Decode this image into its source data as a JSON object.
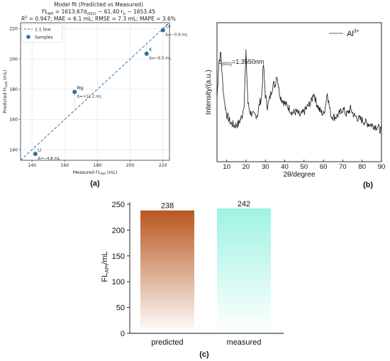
{
  "chart_data": [
    {
      "panel": "(a)",
      "type": "scatter",
      "title": "Model fit (Predicted vs Measured)",
      "equation": "FL_API = 1613.67·d(001) − 61.40·r_b − 1653.45",
      "equation_parts": {
        "lhs": "FL",
        "lhs_sub": "API",
        "mid1": " = 1613.67",
        "d": "d",
        "d_sub": "(001)",
        "mid2": " − 61.40·",
        "r": "r",
        "r_sub": "b",
        "tail": " − 1653.45"
      },
      "metrics": "R² = 0.947; MAE = 6.1 mL; RMSE = 7.3 mL; MAPE = 3.6%",
      "metrics_parts": {
        "r2": "R",
        "r2_sup": "2",
        "rest": " = 0.947; MAE = 6.1 mL; RMSE = 7.3 mL; MAPE = 3.6%"
      },
      "xlabel": {
        "text": "Measured FL",
        "sub": "API",
        "unit": " (mL)"
      },
      "ylabel": {
        "text": "Predicted FL",
        "sub": "API",
        "unit": " (mL)"
      },
      "xlim": [
        133,
        224
      ],
      "ylim": [
        133,
        224
      ],
      "xticks": [
        140,
        160,
        180,
        200,
        220
      ],
      "yticks": [
        140,
        160,
        180,
        200,
        220
      ],
      "grid": true,
      "legend": {
        "placement": "top-left",
        "entries": [
          "1:1 line",
          "Samples"
        ]
      },
      "color": "#2c6fa4",
      "points": [
        {
          "label": "Li",
          "x": 142.0,
          "y": 137.2,
          "delta": "Δ=−4.8 mL"
        },
        {
          "label": "Mg",
          "x": 166.0,
          "y": 178.2,
          "delta": "Δ=+12.2 mL"
        },
        {
          "label": "K",
          "x": 210.0,
          "y": 203.5,
          "delta": "Δ=−6.5 mL"
        },
        {
          "label": "Cs",
          "x": 220.0,
          "y": 219.1,
          "delta": "Δ=−0.9 mL"
        }
      ]
    },
    {
      "panel": "(b)",
      "type": "line",
      "title": "",
      "xlabel": "2θ/degree",
      "ylabel": "Intensity/(a.u.)",
      "xlim": [
        5,
        90
      ],
      "xticks": [
        10,
        20,
        30,
        40,
        50,
        60,
        70,
        80,
        90
      ],
      "legend": {
        "placement": "top-right",
        "entries": [
          {
            "text": "Al",
            "sup": "3+"
          }
        ]
      },
      "annotation": {
        "prefix": "d",
        "sub": "(001)",
        "text": "=1.3550nm"
      },
      "series": [
        {
          "name": "Al3+",
          "x": [
            5,
            6,
            7,
            8,
            9,
            10,
            12,
            14,
            16,
            18,
            19,
            20,
            21,
            22,
            24,
            26,
            27,
            28,
            29,
            30,
            31,
            32,
            34,
            35,
            36,
            37,
            38,
            40,
            42,
            44,
            46,
            48,
            50,
            52,
            54,
            55,
            56,
            58,
            60,
            61,
            62,
            63,
            64,
            66,
            68,
            70,
            72,
            74,
            76,
            78,
            80,
            82,
            84,
            86,
            88,
            90
          ],
          "y": [
            0.45,
            0.72,
            0.78,
            0.55,
            0.42,
            0.34,
            0.28,
            0.26,
            0.27,
            0.33,
            0.42,
            0.78,
            0.42,
            0.36,
            0.33,
            0.34,
            0.42,
            0.46,
            0.7,
            0.48,
            0.4,
            0.44,
            0.56,
            0.55,
            0.63,
            0.52,
            0.46,
            0.42,
            0.39,
            0.35,
            0.36,
            0.33,
            0.36,
            0.4,
            0.44,
            0.5,
            0.44,
            0.37,
            0.34,
            0.4,
            0.5,
            0.4,
            0.33,
            0.32,
            0.34,
            0.38,
            0.34,
            0.38,
            0.33,
            0.31,
            0.3,
            0.28,
            0.27,
            0.26,
            0.25,
            0.22
          ]
        }
      ]
    },
    {
      "panel": "(c)",
      "type": "bar",
      "title": "",
      "categories": [
        "predicted",
        "measured"
      ],
      "values": [
        238,
        242
      ],
      "data_labels": [
        "238",
        "242"
      ],
      "ylabel": {
        "text": "FL",
        "sub": "API",
        "unit": "/mL"
      },
      "ylim": [
        0,
        250
      ],
      "yticks": [
        0,
        50,
        100,
        150,
        200,
        250
      ],
      "colors": [
        "#b8571e",
        "#9ff3e2"
      ]
    }
  ]
}
